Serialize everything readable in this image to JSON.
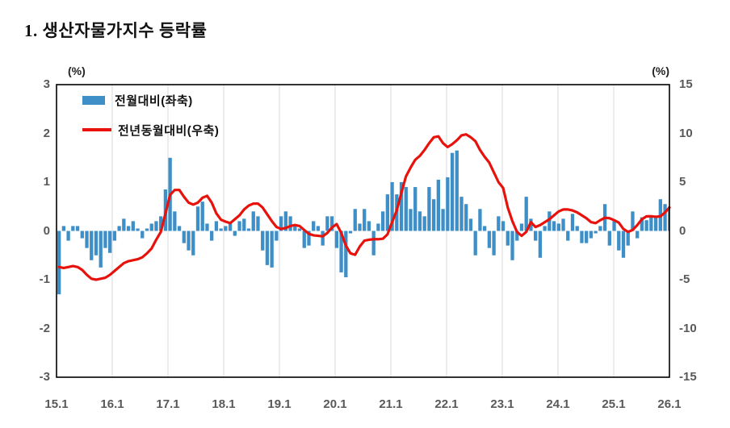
{
  "title": "1. 생산자물가지수 등락률",
  "axes": {
    "left_unit_label": "(%)",
    "right_unit_label": "(%)",
    "left_ticks": [
      "3",
      "2",
      "1",
      "0",
      "-1",
      "-2",
      "-3"
    ],
    "right_ticks": [
      "15",
      "10",
      "5",
      "0",
      "-5",
      "-10",
      "-15"
    ],
    "x_ticks": [
      "15.1",
      "16.1",
      "17.1",
      "18.1",
      "19.1",
      "20.1",
      "21.1",
      "22.1",
      "23.1",
      "24.1",
      "25.1",
      "26.1"
    ]
  },
  "legend": [
    {
      "label": "전월대비(좌축)",
      "type": "bar"
    },
    {
      "label": "전년동월대비(우축)",
      "type": "line"
    }
  ],
  "colors": {
    "bar": "#3e8ec7",
    "line": "#e8120c",
    "gridline": "#d9d9d9",
    "axis_text": "#595959",
    "border": "#000000"
  },
  "chart_data": {
    "type": "bar",
    "title": "1. 생산자물가지수 등락률",
    "x_start": "15.1",
    "x_end": "26.1",
    "x_tick_labels": [
      "15.1",
      "16.1",
      "17.1",
      "18.1",
      "19.1",
      "20.1",
      "21.1",
      "22.1",
      "23.1",
      "24.1",
      "25.1",
      "26.1"
    ],
    "left_ylim": [
      -3,
      3
    ],
    "right_ylim": [
      -15,
      15
    ],
    "grid": "vertical-only",
    "legend_position": "inside-top-left",
    "series": [
      {
        "name": "전월대비(좌축)",
        "type": "bar",
        "axis": "left",
        "unit": "%",
        "values": [
          -1.3,
          0.1,
          -0.2,
          0.1,
          0.1,
          -0.15,
          -0.35,
          -0.6,
          -0.5,
          -0.75,
          -0.35,
          -0.45,
          -0.2,
          0.1,
          0.25,
          0.1,
          0.2,
          0.05,
          -0.15,
          0.05,
          0.15,
          0.2,
          0.3,
          0.85,
          1.5,
          0.4,
          0.1,
          -0.25,
          -0.4,
          -0.5,
          0.5,
          0.6,
          0.15,
          -0.2,
          0.2,
          0.05,
          0.1,
          0.15,
          -0.1,
          0.2,
          0.25,
          0.05,
          0.4,
          0.3,
          -0.4,
          -0.7,
          -0.75,
          -0.2,
          0.3,
          0.4,
          0.3,
          0.1,
          0.05,
          -0.35,
          -0.3,
          0.2,
          0.1,
          -0.3,
          0.3,
          0.3,
          -0.35,
          -0.85,
          -0.95,
          -0.05,
          0.45,
          0.15,
          0.45,
          0.2,
          -0.5,
          0.15,
          0.4,
          0.75,
          1.0,
          0.75,
          1.0,
          0.9,
          0.45,
          0.9,
          0.4,
          0.3,
          0.9,
          0.65,
          1.05,
          0.45,
          1.1,
          1.6,
          1.65,
          0.7,
          0.55,
          0.25,
          -0.5,
          0.45,
          0.1,
          -0.35,
          -0.5,
          0.3,
          0.2,
          -0.3,
          -0.6,
          -0.2,
          0.15,
          0.7,
          0.25,
          -0.2,
          -0.55,
          0.1,
          0.4,
          0.2,
          0.15,
          0.25,
          -0.2,
          0.35,
          0.1,
          -0.25,
          -0.25,
          -0.15,
          -0.05,
          0.1,
          0.55,
          -0.3,
          0.2,
          -0.4,
          -0.55,
          -0.3,
          0.4,
          -0.15,
          0.28,
          0.22,
          0.28,
          0.3,
          0.65,
          0.55,
          0.5
        ]
      },
      {
        "name": "전년동월대비(우축)",
        "type": "line",
        "axis": "right",
        "unit": "%",
        "values": [
          -3.7,
          -3.8,
          -3.7,
          -3.6,
          -3.7,
          -4.0,
          -4.5,
          -4.9,
          -5.0,
          -4.9,
          -4.8,
          -4.5,
          -4.1,
          -3.7,
          -3.3,
          -3.1,
          -3.0,
          -2.9,
          -2.7,
          -2.3,
          -1.8,
          -0.9,
          -0.1,
          1.8,
          3.7,
          4.2,
          4.2,
          3.5,
          2.9,
          2.7,
          2.9,
          3.4,
          3.6,
          2.9,
          1.8,
          1.15,
          0.95,
          0.8,
          1.2,
          1.6,
          2.2,
          2.6,
          2.8,
          2.8,
          2.4,
          1.7,
          1.0,
          0.4,
          0.2,
          0.3,
          0.5,
          0.6,
          0.5,
          0.1,
          -0.3,
          -0.45,
          -0.5,
          -0.55,
          -0.2,
          0.35,
          0.7,
          -0.2,
          -1.5,
          -2.3,
          -2.45,
          -1.6,
          -1.0,
          -0.9,
          -0.85,
          -0.85,
          -0.8,
          -0.35,
          0.9,
          2.1,
          3.9,
          5.6,
          6.5,
          7.3,
          7.7,
          8.3,
          9.0,
          9.6,
          9.7,
          9.0,
          8.6,
          8.9,
          9.3,
          9.8,
          9.9,
          9.6,
          9.2,
          8.3,
          7.6,
          7.0,
          6.0,
          5.0,
          4.4,
          2.4,
          1.0,
          -0.1,
          -0.5,
          -0.1,
          0.9,
          0.4,
          0.6,
          0.9,
          1.2,
          1.6,
          2.0,
          2.2,
          2.2,
          2.1,
          1.9,
          1.6,
          1.3,
          0.9,
          0.8,
          1.1,
          1.35,
          1.3,
          1.1,
          0.85,
          0.2,
          -0.1,
          0.1,
          0.6,
          1.2,
          1.5,
          1.5,
          1.45,
          1.5,
          1.9,
          2.4
        ]
      }
    ]
  }
}
